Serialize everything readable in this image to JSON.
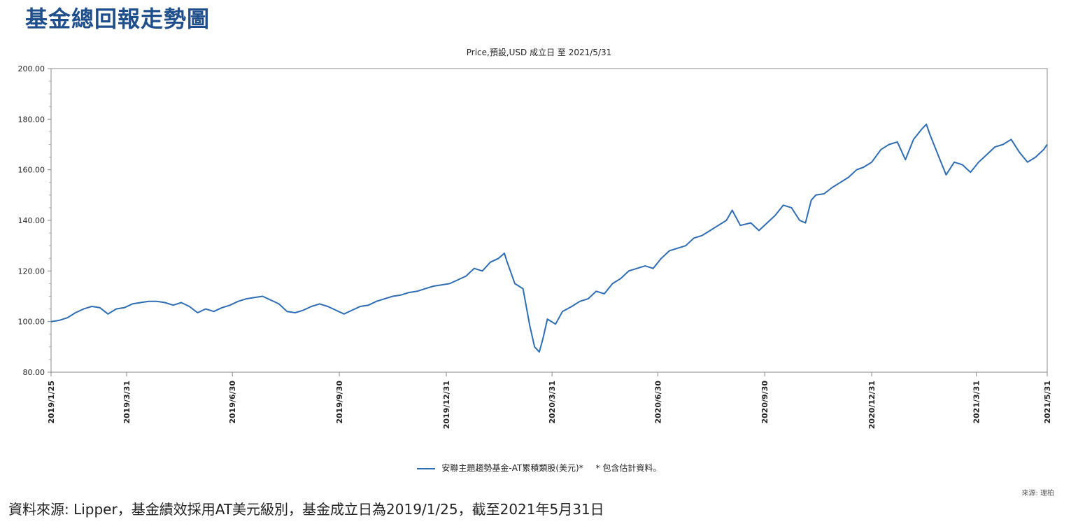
{
  "page": {
    "title": "基金總回報走勢圖",
    "footnote": "資料來源: Lipper，基金績效採用AT美元級別，基金成立日為2019/1/25，截至2021年5月31日",
    "source_small": "來源: 理柏"
  },
  "legend": {
    "series_label": "安聯主題趨勢基金-AT累積類股(美元)*",
    "note": "* 包含估計資料。"
  },
  "chart_data": {
    "type": "line",
    "title": "",
    "subtitle": "Price,預設,USD 成立日 至 2021/5/31",
    "xlabel": "",
    "ylabel": "",
    "ylim": [
      80,
      200
    ],
    "yticks": [
      "80.00",
      "100.00",
      "120.00",
      "140.00",
      "160.00",
      "180.00",
      "200.00"
    ],
    "xticks": [
      "2019/1/25",
      "2019/3/31",
      "2019/6/30",
      "2019/9/30",
      "2019/12/31",
      "2020/3/31",
      "2020/6/30",
      "2020/9/30",
      "2020/12/31",
      "2021/3/31",
      "2021/5/31"
    ],
    "grid": false,
    "legend_position": "bottom",
    "series": [
      {
        "name": "安聯主題趨勢基金-AT累積類股(美元)*",
        "color": "#2e6db4",
        "points": [
          [
            "2019-01-25",
            100.0
          ],
          [
            "2019-02-01",
            100.5
          ],
          [
            "2019-02-08",
            101.5
          ],
          [
            "2019-02-15",
            103.5
          ],
          [
            "2019-02-22",
            105.0
          ],
          [
            "2019-03-01",
            106.0
          ],
          [
            "2019-03-08",
            105.5
          ],
          [
            "2019-03-15",
            103.0
          ],
          [
            "2019-03-22",
            105.0
          ],
          [
            "2019-03-29",
            105.5
          ],
          [
            "2019-04-05",
            107.0
          ],
          [
            "2019-04-12",
            107.5
          ],
          [
            "2019-04-19",
            108.0
          ],
          [
            "2019-04-26",
            108.0
          ],
          [
            "2019-05-03",
            107.5
          ],
          [
            "2019-05-10",
            106.5
          ],
          [
            "2019-05-17",
            107.5
          ],
          [
            "2019-05-24",
            106.0
          ],
          [
            "2019-05-31",
            103.5
          ],
          [
            "2019-06-07",
            105.0
          ],
          [
            "2019-06-14",
            104.0
          ],
          [
            "2019-06-21",
            105.5
          ],
          [
            "2019-06-28",
            106.5
          ],
          [
            "2019-07-05",
            108.0
          ],
          [
            "2019-07-12",
            109.0
          ],
          [
            "2019-07-19",
            109.5
          ],
          [
            "2019-07-26",
            110.0
          ],
          [
            "2019-08-02",
            108.5
          ],
          [
            "2019-08-09",
            107.0
          ],
          [
            "2019-08-16",
            104.0
          ],
          [
            "2019-08-23",
            103.5
          ],
          [
            "2019-08-30",
            104.5
          ],
          [
            "2019-09-06",
            106.0
          ],
          [
            "2019-09-13",
            107.0
          ],
          [
            "2019-09-20",
            106.0
          ],
          [
            "2019-09-27",
            104.5
          ],
          [
            "2019-10-04",
            103.0
          ],
          [
            "2019-10-11",
            104.5
          ],
          [
            "2019-10-18",
            106.0
          ],
          [
            "2019-10-25",
            106.5
          ],
          [
            "2019-11-01",
            108.0
          ],
          [
            "2019-11-08",
            109.0
          ],
          [
            "2019-11-15",
            110.0
          ],
          [
            "2019-11-22",
            110.5
          ],
          [
            "2019-11-29",
            111.5
          ],
          [
            "2019-12-06",
            112.0
          ],
          [
            "2019-12-13",
            113.0
          ],
          [
            "2019-12-20",
            114.0
          ],
          [
            "2019-12-27",
            114.5
          ],
          [
            "2020-01-03",
            115.0
          ],
          [
            "2020-01-10",
            116.5
          ],
          [
            "2020-01-17",
            118.0
          ],
          [
            "2020-01-24",
            121.0
          ],
          [
            "2020-01-31",
            120.0
          ],
          [
            "2020-02-07",
            123.5
          ],
          [
            "2020-02-14",
            125.0
          ],
          [
            "2020-02-19",
            127.0
          ],
          [
            "2020-02-21",
            124.0
          ],
          [
            "2020-02-28",
            115.0
          ],
          [
            "2020-03-06",
            113.0
          ],
          [
            "2020-03-12",
            98.0
          ],
          [
            "2020-03-16",
            90.0
          ],
          [
            "2020-03-20",
            88.0
          ],
          [
            "2020-03-23",
            93.0
          ],
          [
            "2020-03-27",
            101.0
          ],
          [
            "2020-04-03",
            99.0
          ],
          [
            "2020-04-09",
            104.0
          ],
          [
            "2020-04-17",
            106.0
          ],
          [
            "2020-04-24",
            108.0
          ],
          [
            "2020-05-01",
            109.0
          ],
          [
            "2020-05-08",
            112.0
          ],
          [
            "2020-05-15",
            111.0
          ],
          [
            "2020-05-22",
            115.0
          ],
          [
            "2020-05-29",
            117.0
          ],
          [
            "2020-06-05",
            120.0
          ],
          [
            "2020-06-12",
            121.0
          ],
          [
            "2020-06-19",
            122.0
          ],
          [
            "2020-06-26",
            121.0
          ],
          [
            "2020-07-03",
            125.0
          ],
          [
            "2020-07-10",
            128.0
          ],
          [
            "2020-07-17",
            129.0
          ],
          [
            "2020-07-24",
            130.0
          ],
          [
            "2020-07-31",
            133.0
          ],
          [
            "2020-08-07",
            134.0
          ],
          [
            "2020-08-14",
            136.0
          ],
          [
            "2020-08-21",
            138.0
          ],
          [
            "2020-08-28",
            140.0
          ],
          [
            "2020-09-02",
            144.0
          ],
          [
            "2020-09-09",
            138.0
          ],
          [
            "2020-09-18",
            139.0
          ],
          [
            "2020-09-25",
            136.0
          ],
          [
            "2020-10-02",
            139.0
          ],
          [
            "2020-10-09",
            142.0
          ],
          [
            "2020-10-16",
            146.0
          ],
          [
            "2020-10-23",
            145.0
          ],
          [
            "2020-10-30",
            140.0
          ],
          [
            "2020-11-04",
            139.0
          ],
          [
            "2020-11-09",
            148.0
          ],
          [
            "2020-11-13",
            150.0
          ],
          [
            "2020-11-20",
            150.5
          ],
          [
            "2020-11-27",
            153.0
          ],
          [
            "2020-12-04",
            155.0
          ],
          [
            "2020-12-11",
            157.0
          ],
          [
            "2020-12-18",
            160.0
          ],
          [
            "2020-12-24",
            161.0
          ],
          [
            "2020-12-31",
            163.0
          ],
          [
            "2021-01-08",
            168.0
          ],
          [
            "2021-01-15",
            170.0
          ],
          [
            "2021-01-22",
            171.0
          ],
          [
            "2021-01-29",
            164.0
          ],
          [
            "2021-02-05",
            172.0
          ],
          [
            "2021-02-12",
            176.0
          ],
          [
            "2021-02-16",
            178.0
          ],
          [
            "2021-02-19",
            174.0
          ],
          [
            "2021-02-26",
            166.0
          ],
          [
            "2021-03-05",
            158.0
          ],
          [
            "2021-03-12",
            163.0
          ],
          [
            "2021-03-19",
            162.0
          ],
          [
            "2021-03-26",
            159.0
          ],
          [
            "2021-04-02",
            163.0
          ],
          [
            "2021-04-09",
            166.0
          ],
          [
            "2021-04-16",
            169.0
          ],
          [
            "2021-04-23",
            170.0
          ],
          [
            "2021-04-30",
            172.0
          ],
          [
            "2021-05-07",
            167.0
          ],
          [
            "2021-05-14",
            163.0
          ],
          [
            "2021-05-21",
            165.0
          ],
          [
            "2021-05-28",
            168.0
          ],
          [
            "2021-05-31",
            170.0
          ]
        ]
      }
    ]
  }
}
